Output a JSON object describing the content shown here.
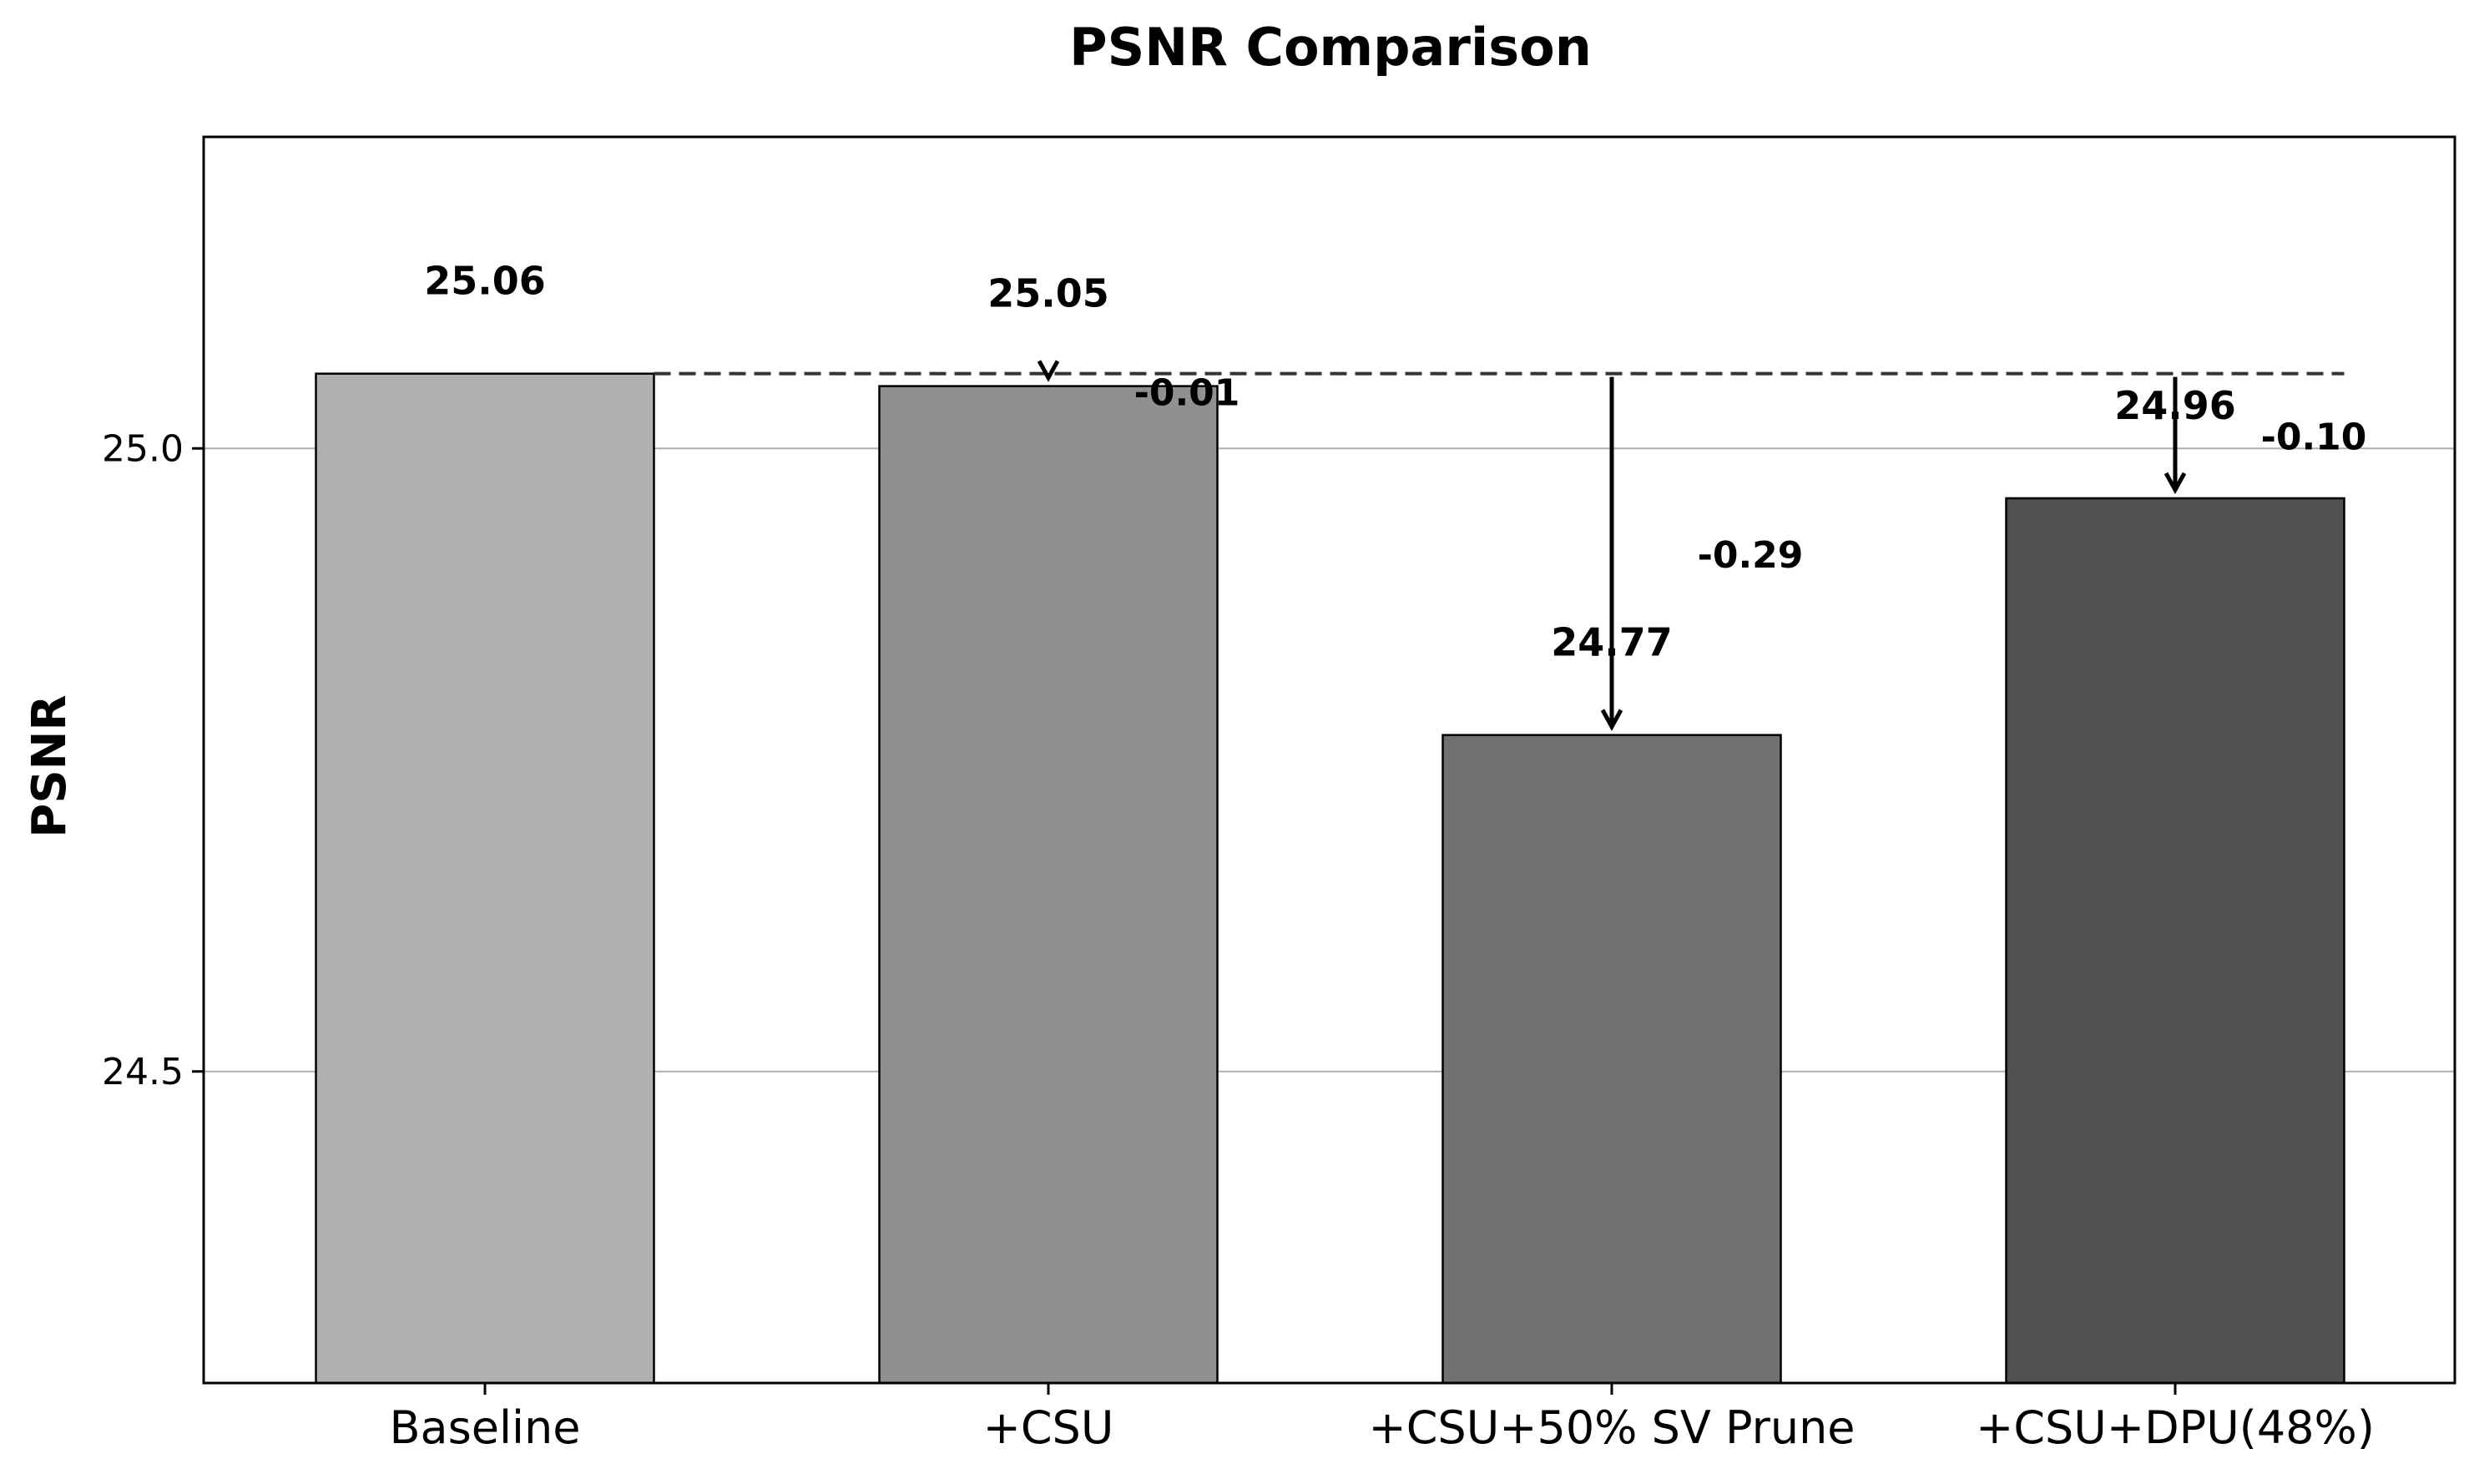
{
  "chart_data": {
    "type": "bar",
    "title": "PSNR Comparison",
    "xlabel": "",
    "ylabel": "PSNR",
    "categories": [
      "Baseline",
      "+CSU",
      "+CSU+50% SV Prune",
      "+CSU+DPU(48%)"
    ],
    "values": [
      25.06,
      25.05,
      24.77,
      24.96
    ],
    "value_labels": [
      "25.06",
      "25.05",
      "24.77",
      "24.96"
    ],
    "deltas": [
      {
        "category": "+CSU",
        "value": -0.01,
        "label": "-0.01"
      },
      {
        "category": "+CSU+50% SV Prune",
        "value": -0.29,
        "label": "-0.29"
      },
      {
        "category": "+CSU+DPU(48%)",
        "value": -0.1,
        "label": "-0.10"
      }
    ],
    "reference_line": {
      "value": 25.06,
      "style": "dashed"
    },
    "ylim": [
      24.25,
      25.25
    ],
    "yticks": [
      24.5,
      25.0
    ],
    "ytick_labels": [
      "24.5",
      "25.0"
    ],
    "grid": "y",
    "colors": [
      "#b0b0b0",
      "#909090",
      "#707070",
      "#505050"
    ]
  }
}
